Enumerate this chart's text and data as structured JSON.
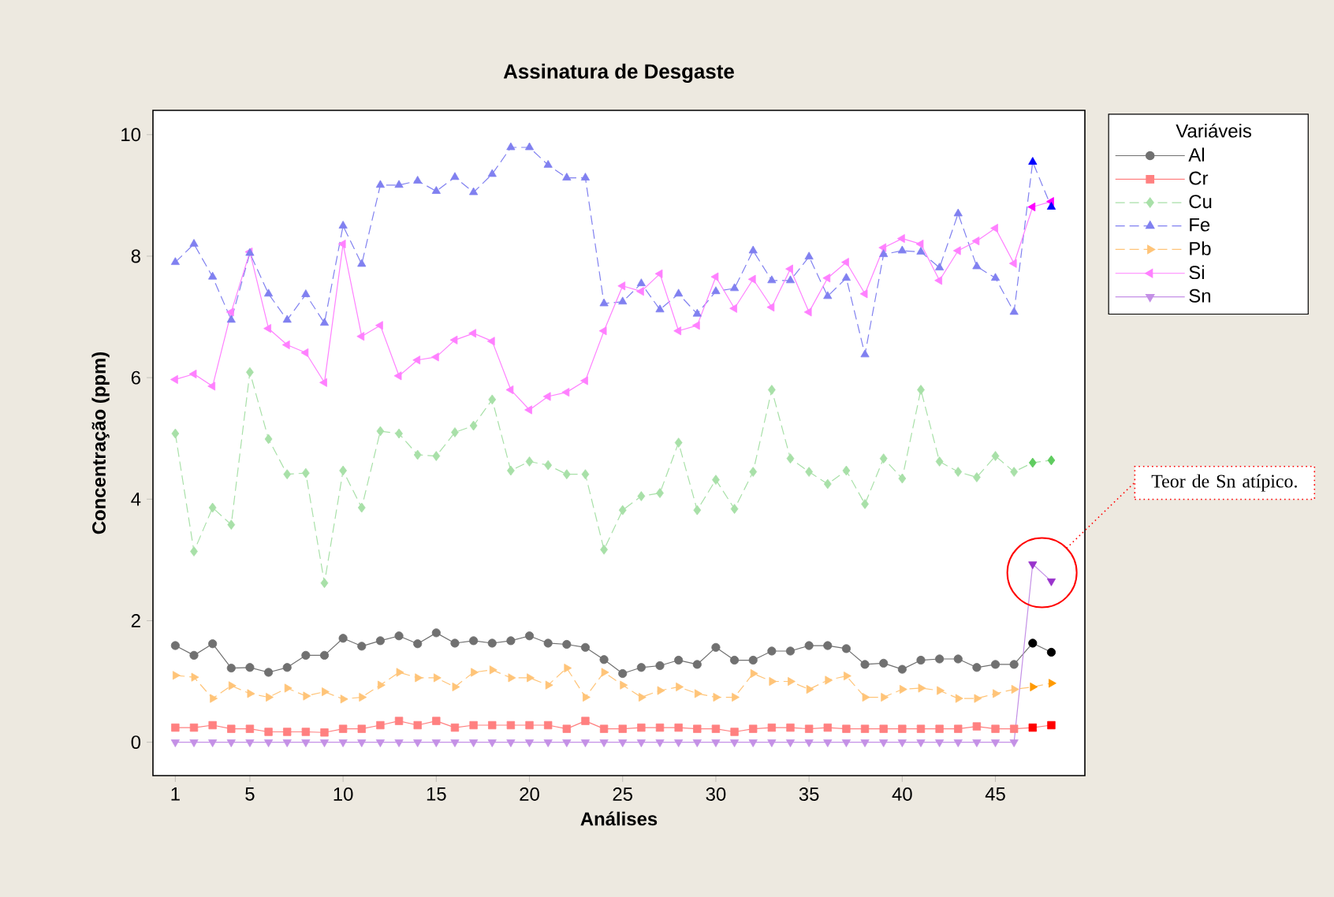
{
  "chart_data": {
    "type": "line",
    "title": "Assinatura de Desgaste",
    "xlabel": "Análises",
    "ylabel": "Concentração (ppm)",
    "legend_title": "Variáveis",
    "legend": "right",
    "x": [
      1,
      2,
      3,
      4,
      5,
      6,
      7,
      8,
      9,
      10,
      11,
      12,
      13,
      14,
      15,
      16,
      17,
      18,
      19,
      20,
      21,
      22,
      23,
      24,
      25,
      26,
      27,
      28,
      29,
      30,
      31,
      32,
      33,
      34,
      35,
      36,
      37,
      38,
      39,
      40,
      41,
      42,
      43,
      44,
      45,
      46,
      47,
      48
    ],
    "xlim": [
      -0.2,
      49.8
    ],
    "xticks": [
      1,
      5,
      10,
      15,
      20,
      25,
      30,
      35,
      40,
      45
    ],
    "ylim": [
      -0.55,
      10.4
    ],
    "yticks": [
      0,
      2,
      4,
      6,
      8,
      10
    ],
    "series": [
      {
        "name": "Al",
        "color": "#707070",
        "marker": "circle",
        "line_style": "solid",
        "values": [
          1.59,
          1.43,
          1.62,
          1.22,
          1.23,
          1.15,
          1.23,
          1.43,
          1.43,
          1.71,
          1.58,
          1.67,
          1.75,
          1.62,
          1.8,
          1.63,
          1.67,
          1.63,
          1.67,
          1.75,
          1.63,
          1.61,
          1.56,
          1.36,
          1.13,
          1.23,
          1.26,
          1.35,
          1.28,
          1.56,
          1.35,
          1.35,
          1.5,
          1.5,
          1.59,
          1.59,
          1.54,
          1.28,
          1.3,
          1.2,
          1.35,
          1.37,
          1.37,
          1.23,
          1.28,
          1.28,
          1.63,
          1.48
        ],
        "colors": [
          "#707070",
          "#707070",
          "#707070",
          "#707070",
          "#707070",
          "#707070",
          "#707070",
          "#707070",
          "#707070",
          "#707070",
          "#707070",
          "#707070",
          "#707070",
          "#707070",
          "#707070",
          "#707070",
          "#707070",
          "#707070",
          "#707070",
          "#707070",
          "#707070",
          "#707070",
          "#707070",
          "#707070",
          "#707070",
          "#707070",
          "#707070",
          "#707070",
          "#707070",
          "#707070",
          "#707070",
          "#707070",
          "#707070",
          "#707070",
          "#707070",
          "#707070",
          "#707070",
          "#707070",
          "#707070",
          "#707070",
          "#707070",
          "#707070",
          "#707070",
          "#707070",
          "#707070",
          "#707070",
          "#000000",
          "#000000"
        ]
      },
      {
        "name": "Cr",
        "color": "#ff8080",
        "marker": "square",
        "line_style": "solid",
        "values": [
          0.24,
          0.24,
          0.28,
          0.22,
          0.22,
          0.17,
          0.17,
          0.17,
          0.16,
          0.22,
          0.22,
          0.28,
          0.35,
          0.28,
          0.35,
          0.24,
          0.28,
          0.28,
          0.28,
          0.28,
          0.28,
          0.22,
          0.35,
          0.22,
          0.22,
          0.24,
          0.24,
          0.24,
          0.22,
          0.22,
          0.17,
          0.22,
          0.24,
          0.24,
          0.22,
          0.24,
          0.22,
          0.22,
          0.22,
          0.22,
          0.22,
          0.22,
          0.22,
          0.26,
          0.22,
          0.22,
          0.24,
          0.28
        ],
        "colors": [
          "#ff8080",
          "#ff8080",
          "#ff8080",
          "#ff8080",
          "#ff8080",
          "#ff8080",
          "#ff8080",
          "#ff8080",
          "#ff8080",
          "#ff8080",
          "#ff8080",
          "#ff8080",
          "#ff8080",
          "#ff8080",
          "#ff8080",
          "#ff8080",
          "#ff8080",
          "#ff8080",
          "#ff8080",
          "#ff8080",
          "#ff8080",
          "#ff8080",
          "#ff8080",
          "#ff8080",
          "#ff8080",
          "#ff8080",
          "#ff8080",
          "#ff8080",
          "#ff8080",
          "#ff8080",
          "#ff8080",
          "#ff8080",
          "#ff8080",
          "#ff8080",
          "#ff8080",
          "#ff8080",
          "#ff8080",
          "#ff8080",
          "#ff8080",
          "#ff8080",
          "#ff8080",
          "#ff8080",
          "#ff8080",
          "#ff8080",
          "#ff8080",
          "#ff8080",
          "#ff0000",
          "#ff0000"
        ]
      },
      {
        "name": "Cu",
        "color": "#a8e0a8",
        "marker": "diamond",
        "line_style": "dashed",
        "values": [
          5.08,
          3.14,
          3.86,
          3.58,
          6.09,
          4.99,
          4.41,
          4.43,
          2.62,
          4.47,
          3.86,
          5.12,
          5.08,
          4.73,
          4.71,
          5.1,
          5.21,
          5.64,
          4.47,
          4.62,
          4.56,
          4.41,
          4.41,
          3.17,
          3.82,
          4.05,
          4.1,
          4.93,
          3.82,
          4.32,
          3.84,
          4.45,
          5.8,
          4.67,
          4.45,
          4.25,
          4.47,
          3.92,
          4.67,
          4.34,
          5.8,
          4.62,
          4.45,
          4.36,
          4.71,
          4.45,
          4.6,
          4.64
        ],
        "colors": [
          "#a8e0a8",
          "#a8e0a8",
          "#a8e0a8",
          "#a8e0a8",
          "#a8e0a8",
          "#a8e0a8",
          "#a8e0a8",
          "#a8e0a8",
          "#a8e0a8",
          "#a8e0a8",
          "#a8e0a8",
          "#a8e0a8",
          "#a8e0a8",
          "#a8e0a8",
          "#a8e0a8",
          "#a8e0a8",
          "#a8e0a8",
          "#a8e0a8",
          "#a8e0a8",
          "#a8e0a8",
          "#a8e0a8",
          "#a8e0a8",
          "#a8e0a8",
          "#a8e0a8",
          "#a8e0a8",
          "#a8e0a8",
          "#a8e0a8",
          "#a8e0a8",
          "#a8e0a8",
          "#a8e0a8",
          "#a8e0a8",
          "#a8e0a8",
          "#a8e0a8",
          "#a8e0a8",
          "#a8e0a8",
          "#a8e0a8",
          "#a8e0a8",
          "#a8e0a8",
          "#a8e0a8",
          "#a8e0a8",
          "#a8e0a8",
          "#a8e0a8",
          "#a8e0a8",
          "#a8e0a8",
          "#a8e0a8",
          "#a8e0a8",
          "#5fcc5f",
          "#5fcc5f"
        ]
      },
      {
        "name": "Fe",
        "color": "#8080f0",
        "marker": "triangle",
        "line_style": "dashed",
        "values": [
          7.9,
          8.2,
          7.66,
          6.95,
          8.05,
          7.38,
          6.95,
          7.37,
          6.9,
          8.5,
          7.87,
          9.17,
          9.17,
          9.24,
          9.07,
          9.3,
          9.05,
          9.35,
          9.79,
          9.79,
          9.5,
          9.29,
          9.29,
          7.22,
          7.25,
          7.55,
          7.12,
          7.38,
          7.05,
          7.42,
          7.47,
          8.09,
          7.6,
          7.6,
          7.99,
          7.34,
          7.64,
          6.38,
          8.03,
          8.09,
          8.07,
          7.81,
          8.7,
          7.83,
          7.64,
          7.08,
          9.55,
          8.81
        ],
        "colors": [
          "#8080f0",
          "#8080f0",
          "#8080f0",
          "#8080f0",
          "#8080f0",
          "#8080f0",
          "#8080f0",
          "#8080f0",
          "#8080f0",
          "#8080f0",
          "#8080f0",
          "#8080f0",
          "#8080f0",
          "#8080f0",
          "#8080f0",
          "#8080f0",
          "#8080f0",
          "#8080f0",
          "#8080f0",
          "#8080f0",
          "#8080f0",
          "#8080f0",
          "#8080f0",
          "#8080f0",
          "#8080f0",
          "#8080f0",
          "#8080f0",
          "#8080f0",
          "#8080f0",
          "#8080f0",
          "#8080f0",
          "#8080f0",
          "#8080f0",
          "#8080f0",
          "#8080f0",
          "#8080f0",
          "#8080f0",
          "#8080f0",
          "#8080f0",
          "#8080f0",
          "#8080f0",
          "#8080f0",
          "#8080f0",
          "#8080f0",
          "#8080f0",
          "#8080f0",
          "#0000ff",
          "#0000ff"
        ]
      },
      {
        "name": "Pb",
        "color": "#ffc478",
        "marker": "triangle-right",
        "line_style": "dashed",
        "values": [
          1.1,
          1.07,
          0.72,
          0.93,
          0.8,
          0.74,
          0.89,
          0.76,
          0.83,
          0.71,
          0.74,
          0.94,
          1.15,
          1.06,
          1.06,
          0.91,
          1.15,
          1.19,
          1.06,
          1.06,
          0.94,
          1.22,
          0.74,
          1.15,
          0.94,
          0.74,
          0.85,
          0.91,
          0.8,
          0.74,
          0.74,
          1.13,
          1.0,
          1.0,
          0.87,
          1.02,
          1.09,
          0.74,
          0.74,
          0.87,
          0.89,
          0.85,
          0.72,
          0.72,
          0.8,
          0.87,
          0.91,
          0.97
        ],
        "colors": [
          "#ffc478",
          "#ffc478",
          "#ffc478",
          "#ffc478",
          "#ffc478",
          "#ffc478",
          "#ffc478",
          "#ffc478",
          "#ffc478",
          "#ffc478",
          "#ffc478",
          "#ffc478",
          "#ffc478",
          "#ffc478",
          "#ffc478",
          "#ffc478",
          "#ffc478",
          "#ffc478",
          "#ffc478",
          "#ffc478",
          "#ffc478",
          "#ffc478",
          "#ffc478",
          "#ffc478",
          "#ffc478",
          "#ffc478",
          "#ffc478",
          "#ffc478",
          "#ffc478",
          "#ffc478",
          "#ffc478",
          "#ffc478",
          "#ffc478",
          "#ffc478",
          "#ffc478",
          "#ffc478",
          "#ffc478",
          "#ffc478",
          "#ffc478",
          "#ffc478",
          "#ffc478",
          "#ffc478",
          "#ffc478",
          "#ffc478",
          "#ffc478",
          "#ffc478",
          "#ff9900",
          "#ff9900"
        ]
      },
      {
        "name": "Si",
        "color": "#ff80ff",
        "marker": "triangle-left",
        "line_style": "solid",
        "values": [
          5.97,
          6.06,
          5.86,
          7.08,
          8.07,
          6.81,
          6.54,
          6.41,
          5.92,
          8.2,
          6.68,
          6.86,
          6.03,
          6.29,
          6.34,
          6.62,
          6.73,
          6.6,
          5.8,
          5.47,
          5.69,
          5.76,
          5.95,
          6.77,
          7.51,
          7.42,
          7.71,
          6.77,
          6.86,
          7.66,
          7.14,
          7.62,
          7.16,
          7.79,
          7.08,
          7.64,
          7.9,
          7.38,
          8.14,
          8.29,
          8.2,
          7.6,
          8.09,
          8.25,
          8.46,
          7.88,
          8.81,
          8.9
        ],
        "colors": [
          "#ff80ff",
          "#ff80ff",
          "#ff80ff",
          "#ff80ff",
          "#ff80ff",
          "#ff80ff",
          "#ff80ff",
          "#ff80ff",
          "#ff80ff",
          "#ff80ff",
          "#ff80ff",
          "#ff80ff",
          "#ff80ff",
          "#ff80ff",
          "#ff80ff",
          "#ff80ff",
          "#ff80ff",
          "#ff80ff",
          "#ff80ff",
          "#ff80ff",
          "#ff80ff",
          "#ff80ff",
          "#ff80ff",
          "#ff80ff",
          "#ff80ff",
          "#ff80ff",
          "#ff80ff",
          "#ff80ff",
          "#ff80ff",
          "#ff80ff",
          "#ff80ff",
          "#ff80ff",
          "#ff80ff",
          "#ff80ff",
          "#ff80ff",
          "#ff80ff",
          "#ff80ff",
          "#ff80ff",
          "#ff80ff",
          "#ff80ff",
          "#ff80ff",
          "#ff80ff",
          "#ff80ff",
          "#ff80ff",
          "#ff80ff",
          "#ff80ff",
          "#ff00ff",
          "#ff00ff"
        ]
      },
      {
        "name": "Sn",
        "color": "#c490e6",
        "marker": "triangle-down",
        "line_style": "solid",
        "values": [
          0,
          0,
          0,
          0,
          0,
          0,
          0,
          0,
          0,
          0,
          0,
          0,
          0,
          0,
          0,
          0,
          0,
          0,
          0,
          0,
          0,
          0,
          0,
          0,
          0,
          0,
          0,
          0,
          0,
          0,
          0,
          0,
          0,
          0,
          0,
          0,
          0,
          0,
          0,
          0,
          0,
          0,
          0,
          0,
          0,
          0,
          2.93,
          2.65
        ],
        "colors": [
          "#c490e6",
          "#c490e6",
          "#c490e6",
          "#c490e6",
          "#c490e6",
          "#c490e6",
          "#c490e6",
          "#c490e6",
          "#c490e6",
          "#c490e6",
          "#c490e6",
          "#c490e6",
          "#c490e6",
          "#c490e6",
          "#c490e6",
          "#c490e6",
          "#c490e6",
          "#c490e6",
          "#c490e6",
          "#c490e6",
          "#c490e6",
          "#c490e6",
          "#c490e6",
          "#c490e6",
          "#c490e6",
          "#c490e6",
          "#c490e6",
          "#c490e6",
          "#c490e6",
          "#c490e6",
          "#c490e6",
          "#c490e6",
          "#c490e6",
          "#c490e6",
          "#c490e6",
          "#c490e6",
          "#c490e6",
          "#c490e6",
          "#c490e6",
          "#c490e6",
          "#c490e6",
          "#c490e6",
          "#c490e6",
          "#c490e6",
          "#c490e6",
          "#c490e6",
          "#9933cc",
          "#9933cc"
        ]
      }
    ],
    "annotations": [
      "Teor de Sn atípico."
    ]
  }
}
